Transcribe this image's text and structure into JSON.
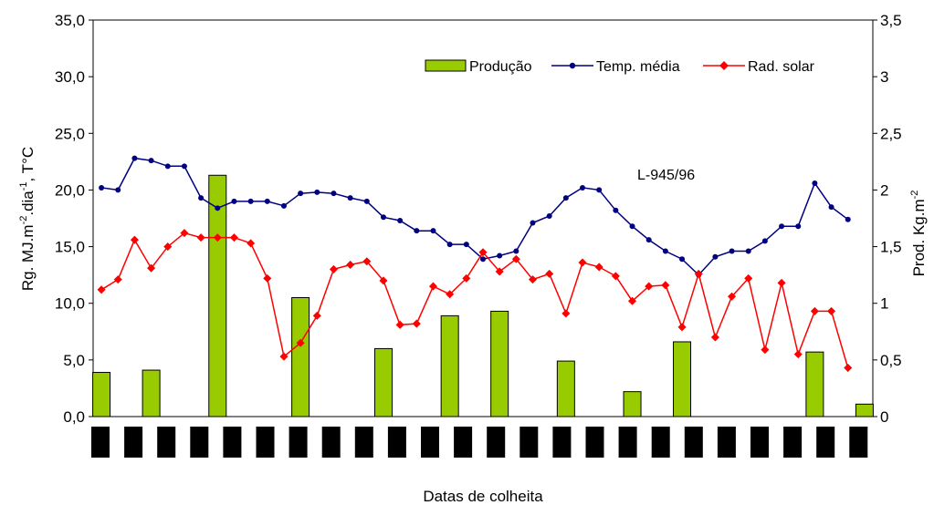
{
  "chart_data": {
    "type": "bar+line",
    "xlabel": "Datas de colheita",
    "ylabel_left": "Rg. MJ.m",
    "ylabel_left_sup1": "-2",
    "ylabel_left_mid": ".dia",
    "ylabel_left_sup2": "-1",
    "ylabel_left_end": ",  T°C",
    "ylabel_right": "Prod. Kg.m",
    "ylabel_right_sup": "-2",
    "annotation": "L-945/96",
    "ylim_left": [
      0,
      35
    ],
    "ylim_right": [
      0,
      3.5
    ],
    "left_ticks": [
      "0,0",
      "5,0",
      "10,0",
      "15,0",
      "20,0",
      "25,0",
      "30,0",
      "35,0"
    ],
    "right_ticks": [
      "0",
      "0,5",
      "1",
      "1,5",
      "2",
      "2,5",
      "3",
      "3,5"
    ],
    "legend_position": "top-right",
    "grid": false,
    "n_points": 46,
    "x_labels_note": "x-axis date labels are illegible (rendered as black blocks)",
    "bars": {
      "name": "Produção",
      "color": "#99cc00",
      "axis": "right",
      "points": [
        [
          0,
          0.39
        ],
        [
          3,
          0.41
        ],
        [
          7,
          2.13
        ],
        [
          12,
          1.05
        ],
        [
          17,
          0.6
        ],
        [
          21,
          0.89
        ],
        [
          24,
          0.93
        ],
        [
          28,
          0.49
        ],
        [
          32,
          0.22
        ],
        [
          35,
          0.66
        ],
        [
          43,
          0.57
        ],
        [
          46,
          0.11
        ]
      ]
    },
    "series": [
      {
        "name": "Temp. média",
        "color": "#000080",
        "axis": "left",
        "values": [
          20.2,
          20.0,
          22.8,
          22.6,
          22.1,
          22.1,
          19.3,
          18.4,
          19.0,
          19.0,
          19.0,
          18.6,
          19.7,
          19.8,
          19.7,
          19.3,
          19.0,
          17.6,
          17.3,
          16.4,
          16.4,
          15.2,
          15.2,
          13.9,
          14.2,
          14.6,
          17.1,
          17.7,
          19.3,
          20.2,
          20.0,
          18.2,
          16.8,
          15.6,
          14.6,
          13.9,
          12.5,
          14.1,
          14.6,
          14.6,
          15.5,
          16.8,
          16.8,
          20.6,
          18.5,
          17.4
        ]
      },
      {
        "name": "Rad. solar",
        "color": "#ff0000",
        "axis": "left",
        "values": [
          11.2,
          12.1,
          15.6,
          13.1,
          15.0,
          16.2,
          15.8,
          15.8,
          15.8,
          15.3,
          12.2,
          5.3,
          6.5,
          8.9,
          13.0,
          13.4,
          13.7,
          12.0,
          8.1,
          8.2,
          11.5,
          10.8,
          12.2,
          14.5,
          12.8,
          13.9,
          12.1,
          12.6,
          9.1,
          13.6,
          13.2,
          12.4,
          10.2,
          11.5,
          11.6,
          7.9,
          12.6,
          7.0,
          10.6,
          12.2,
          5.9,
          11.8,
          5.5,
          9.3,
          9.3,
          4.3
        ]
      }
    ]
  }
}
